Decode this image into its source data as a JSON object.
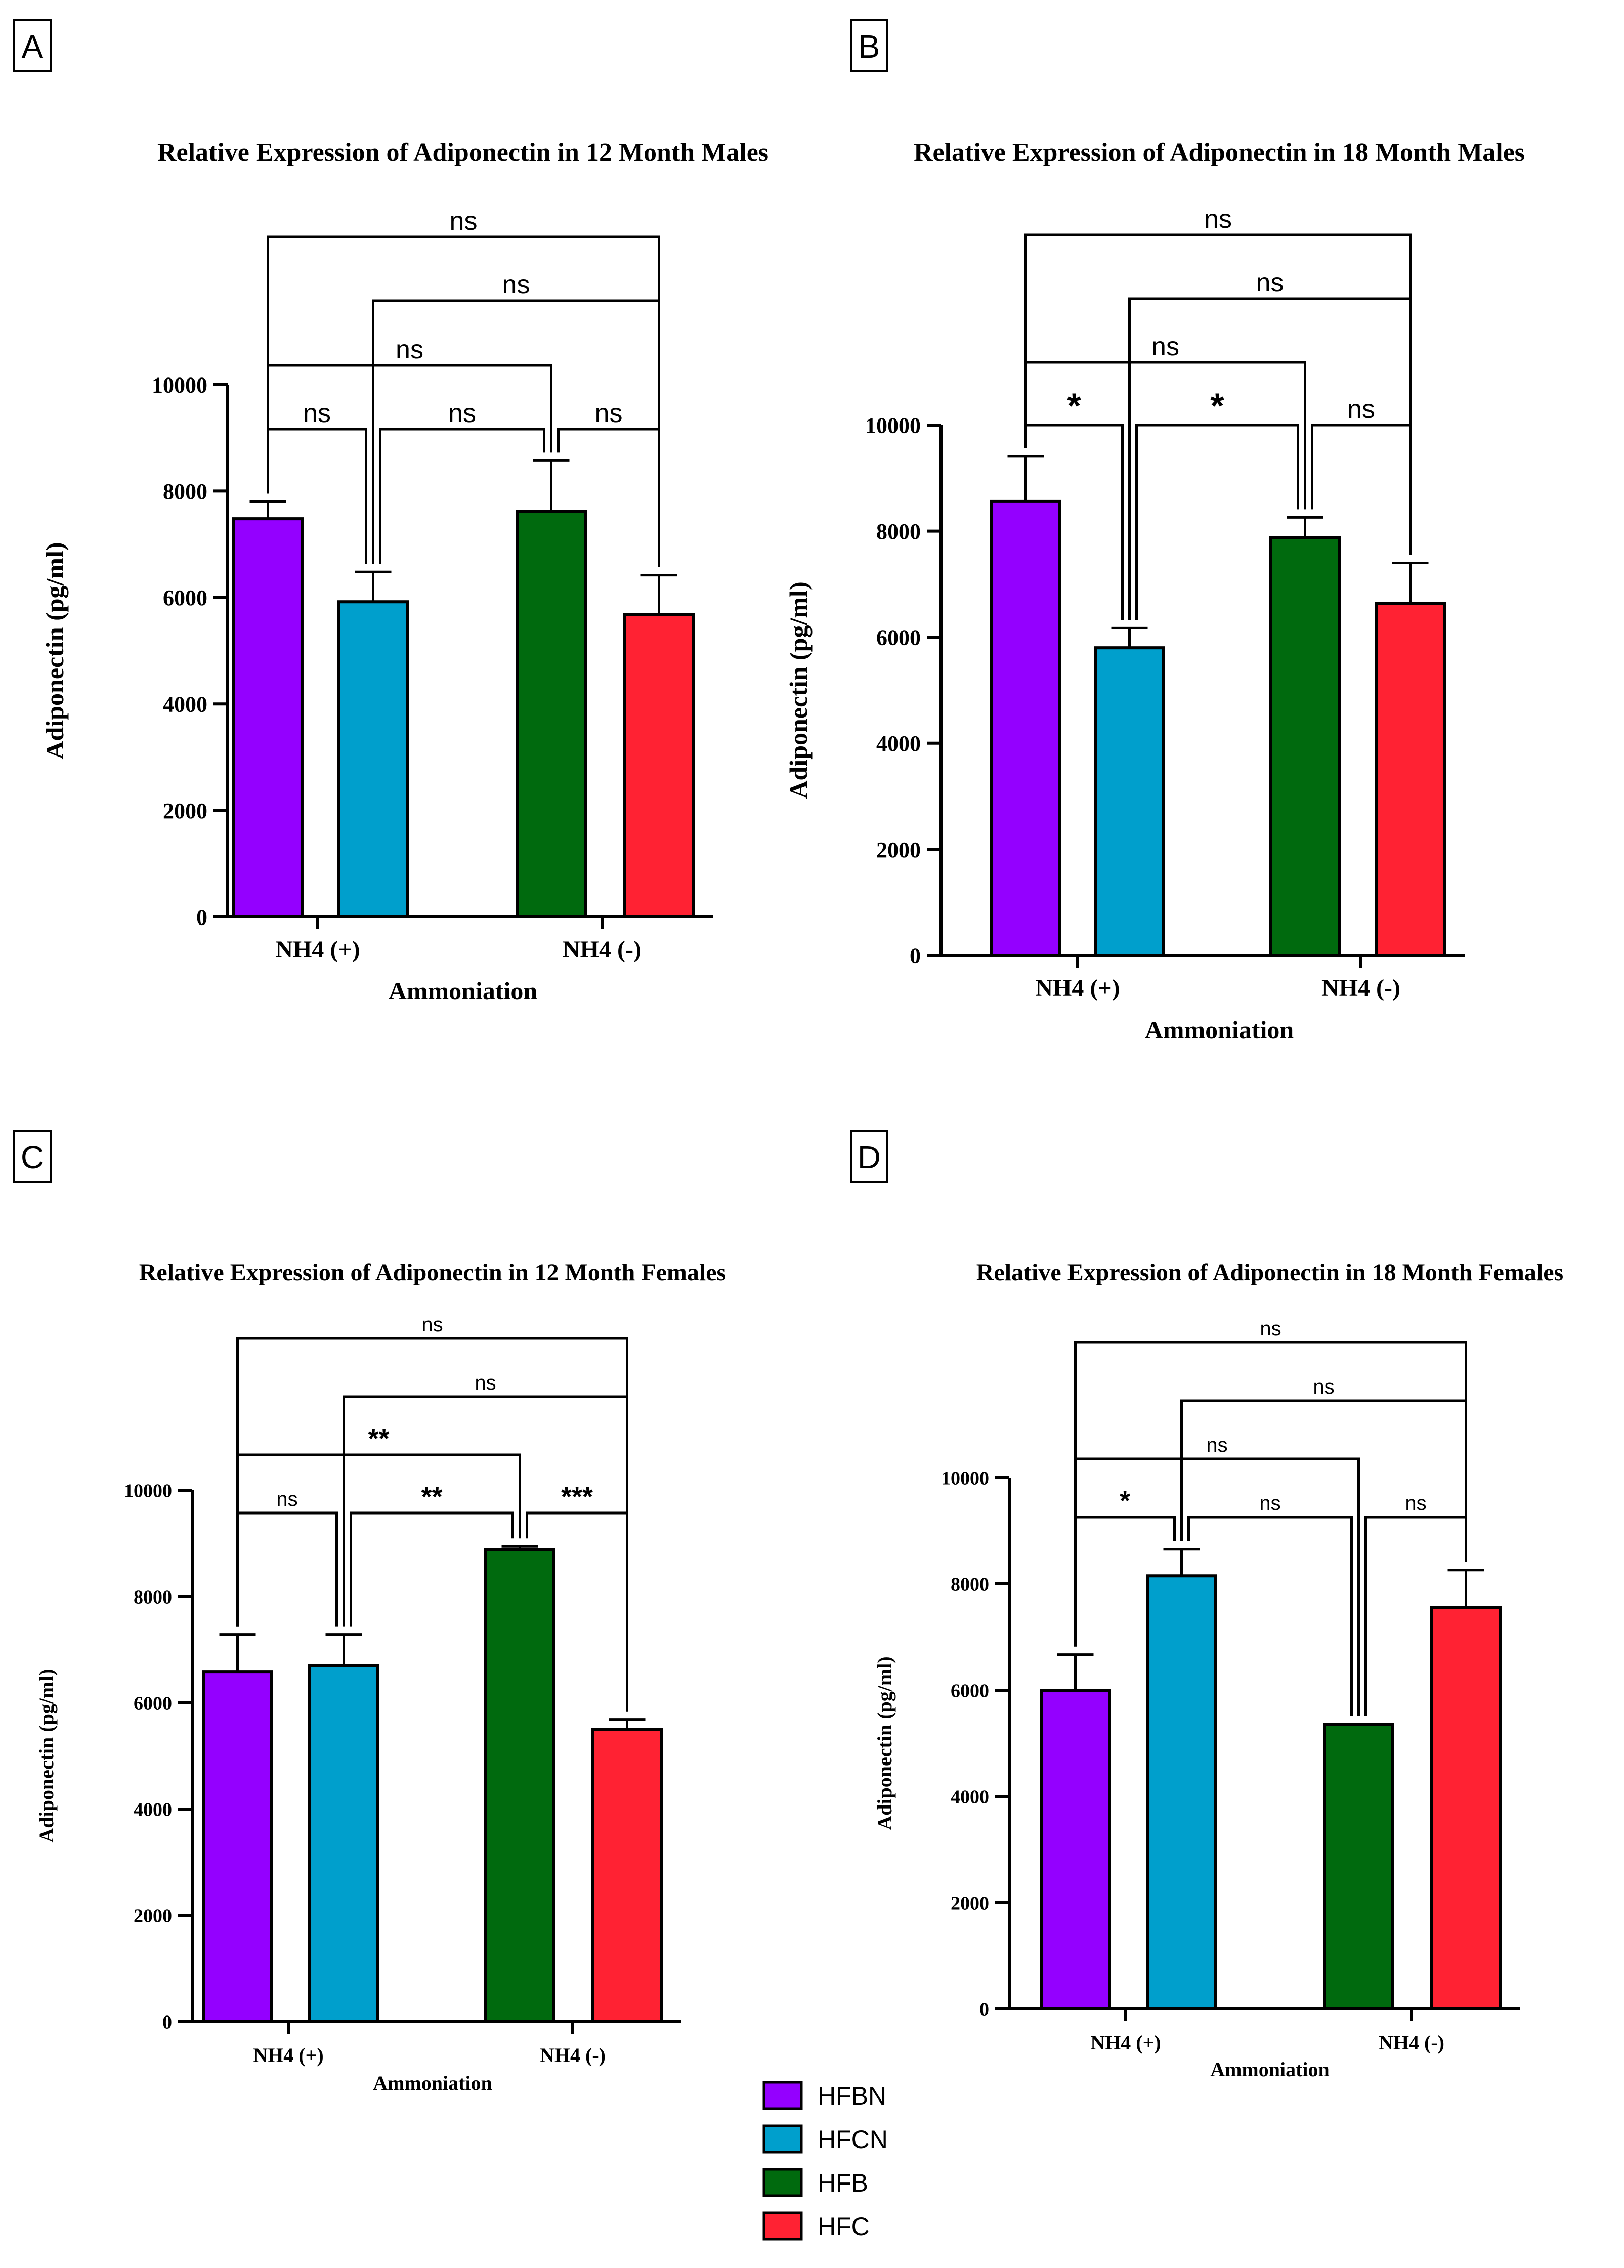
{
  "legend": [
    {
      "label": "HFBN",
      "color": "#9400ff"
    },
    {
      "label": "HFCN",
      "color": "#009fcc"
    },
    {
      "label": "HFB",
      "color": "#006a0e"
    },
    {
      "label": "HFC",
      "color": "#ff2233"
    }
  ],
  "chart_data": [
    {
      "panel": "A",
      "type": "bar",
      "title": "Relative Expression of Adiponectin in 12 Month Males",
      "xlabel": "Ammoniation",
      "ylabel": "Adiponectin (pg/ml)",
      "ylim": [
        0,
        10000
      ],
      "yticks": [
        "0",
        "2000",
        "4000",
        "6000",
        "8000",
        "10000"
      ],
      "yticks_values": [
        0,
        2000,
        4000,
        6000,
        8000,
        10000
      ],
      "categories": [
        "NH4 (+)",
        "NH4 (-)"
      ],
      "series": [
        {
          "name": "HFBN",
          "values": [
            7480,
            null
          ]
        },
        {
          "name": "HFCN",
          "values": [
            5920,
            null
          ]
        },
        {
          "name": "HFB",
          "values": [
            null,
            7620
          ]
        },
        {
          "name": "HFC",
          "values": [
            null,
            5680
          ]
        }
      ],
      "errors": [
        320,
        560,
        950,
        740
      ],
      "brackets": [
        {
          "from": 0,
          "to": 1,
          "label": "ns"
        },
        {
          "from": 1,
          "to": 2,
          "label": "ns"
        },
        {
          "from": 2,
          "to": 3,
          "label": "ns"
        },
        {
          "from": 0,
          "to": 2,
          "label": "ns"
        },
        {
          "from": 1,
          "to": 3,
          "label": "ns"
        },
        {
          "from": 0,
          "to": 3,
          "label": "ns"
        }
      ]
    },
    {
      "panel": "B",
      "type": "bar",
      "title": "Relative Expression of Adiponectin in 18 Month Males",
      "xlabel": "Ammoniation",
      "ylabel": "Adiponectin (pg/ml)",
      "ylim": [
        0,
        10000
      ],
      "yticks": [
        "0",
        "2000",
        "4000",
        "6000",
        "8000",
        "10000"
      ],
      "yticks_values": [
        0,
        2000,
        4000,
        6000,
        8000,
        10000
      ],
      "categories": [
        "NH4 (+)",
        "NH4 (-)"
      ],
      "series": [
        {
          "name": "HFBN",
          "values": [
            8560,
            null
          ]
        },
        {
          "name": "HFCN",
          "values": [
            5800,
            null
          ]
        },
        {
          "name": "HFB",
          "values": [
            null,
            7880
          ]
        },
        {
          "name": "HFC",
          "values": [
            null,
            6640
          ]
        }
      ],
      "errors": [
        850,
        370,
        380,
        760
      ],
      "brackets": [
        {
          "from": 0,
          "to": 1,
          "label": "*"
        },
        {
          "from": 1,
          "to": 2,
          "label": "*"
        },
        {
          "from": 2,
          "to": 3,
          "label": "ns"
        },
        {
          "from": 0,
          "to": 2,
          "label": "ns"
        },
        {
          "from": 1,
          "to": 3,
          "label": "ns"
        },
        {
          "from": 0,
          "to": 3,
          "label": "ns"
        }
      ]
    },
    {
      "panel": "C",
      "type": "bar",
      "title": "Relative Expression of Adiponectin in 12 Month Females",
      "xlabel": "Ammoniation",
      "ylabel": "Adiponectin (pg/ml)",
      "ylim": [
        0,
        10000
      ],
      "yticks": [
        "0",
        "2000",
        "4000",
        "6000",
        "8000",
        "10000"
      ],
      "yticks_values": [
        0,
        2000,
        4000,
        6000,
        8000,
        10000
      ],
      "categories": [
        "NH4 (+)",
        "NH4 (-)"
      ],
      "series": [
        {
          "name": "HFBN",
          "values": [
            6580,
            null
          ]
        },
        {
          "name": "HFCN",
          "values": [
            6700,
            null
          ]
        },
        {
          "name": "HFB",
          "values": [
            null,
            8880
          ]
        },
        {
          "name": "HFC",
          "values": [
            null,
            5500
          ]
        }
      ],
      "errors": [
        700,
        580,
        60,
        180
      ],
      "brackets": [
        {
          "from": 0,
          "to": 1,
          "label": "ns"
        },
        {
          "from": 1,
          "to": 2,
          "label": "**"
        },
        {
          "from": 2,
          "to": 3,
          "label": "***"
        },
        {
          "from": 0,
          "to": 2,
          "label": "**"
        },
        {
          "from": 1,
          "to": 3,
          "label": "ns"
        },
        {
          "from": 0,
          "to": 3,
          "label": "ns"
        }
      ]
    },
    {
      "panel": "D",
      "type": "bar",
      "title": "Relative Expression of Adiponectin in 18 Month Females",
      "xlabel": "Ammoniation",
      "ylabel": "Adiponectin (pg/ml)",
      "ylim": [
        0,
        10000
      ],
      "yticks": [
        "0",
        "2000",
        "4000",
        "6000",
        "8000",
        "10000"
      ],
      "yticks_values": [
        0,
        2000,
        4000,
        6000,
        8000,
        10000
      ],
      "categories": [
        "NH4 (+)",
        "NH4 (-)"
      ],
      "series": [
        {
          "name": "HFBN",
          "values": [
            6000,
            null
          ]
        },
        {
          "name": "HFCN",
          "values": [
            8150,
            null
          ]
        },
        {
          "name": "HFB",
          "values": [
            null,
            5360
          ]
        },
        {
          "name": "HFC",
          "values": [
            null,
            7560
          ]
        }
      ],
      "errors": [
        670,
        500,
        0,
        700
      ],
      "brackets": [
        {
          "from": 0,
          "to": 1,
          "label": "*"
        },
        {
          "from": 1,
          "to": 2,
          "label": "ns"
        },
        {
          "from": 2,
          "to": 3,
          "label": "ns"
        },
        {
          "from": 0,
          "to": 2,
          "label": "ns"
        },
        {
          "from": 1,
          "to": 3,
          "label": "ns"
        },
        {
          "from": 0,
          "to": 3,
          "label": "ns"
        }
      ]
    }
  ]
}
